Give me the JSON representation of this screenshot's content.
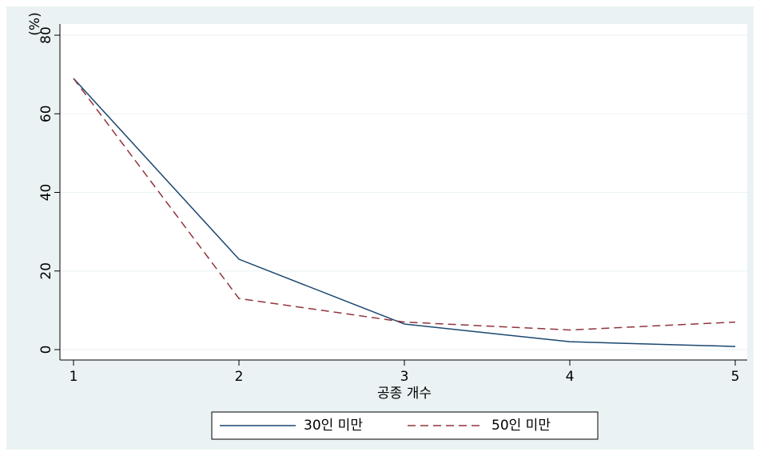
{
  "chart_data": {
    "type": "line",
    "y_label": "(%)",
    "x_label": "공종 개수",
    "x": [
      1,
      2,
      3,
      4,
      5
    ],
    "xlim": [
      1,
      5
    ],
    "xticks": [
      1,
      2,
      3,
      4,
      5
    ],
    "ylim": [
      0,
      80
    ],
    "yticks": [
      0,
      20,
      40,
      60,
      80
    ],
    "grid": true,
    "series": [
      {
        "name": "30인 미만",
        "color": "#1a476f",
        "dash": "solid",
        "values": [
          69,
          23,
          6.5,
          2,
          0.8
        ]
      },
      {
        "name": "50인 미만",
        "color": "#90353b",
        "dash": "dashed",
        "values": [
          69,
          13,
          7,
          5,
          7
        ]
      }
    ]
  }
}
